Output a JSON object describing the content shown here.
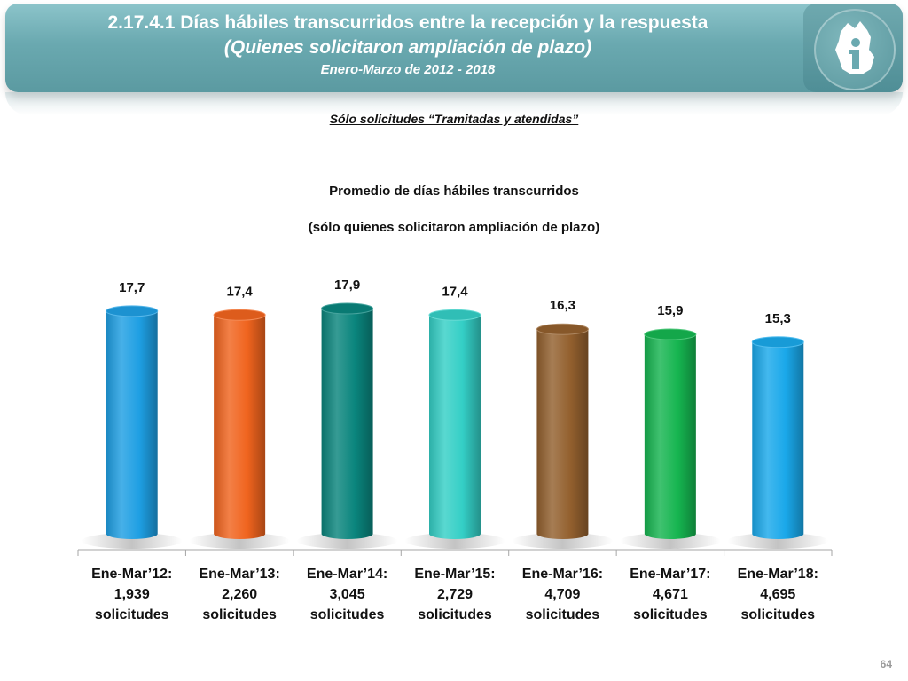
{
  "header": {
    "title": "2.17.4.1 Días hábiles transcurridos entre la recepción y la respuesta",
    "subtitle": "(Quienes solicitaron ampliación de plazo)",
    "period": "Enero-Marzo de 2012 - 2018"
  },
  "subheading": "Sólo solicitudes “Tramitadas y atendidas”",
  "page_number": "64",
  "chart_data": {
    "type": "bar",
    "title": "Promedio de días hábiles transcurridos",
    "subtitle": "(sólo quienes solicitaron ampliación de plazo)",
    "categories": [
      [
        "Ene-Mar’12:",
        "1,939",
        "solicitudes"
      ],
      [
        "Ene-Mar’13:",
        "2,260",
        "solicitudes"
      ],
      [
        "Ene-Mar’14:",
        "3,045",
        "solicitudes"
      ],
      [
        "Ene-Mar’15:",
        "2,729",
        "solicitudes"
      ],
      [
        "Ene-Mar’16:",
        "4,709",
        "solicitudes"
      ],
      [
        "Ene-Mar’17:",
        "4,671",
        "solicitudes"
      ],
      [
        "Ene-Mar’18:",
        "4,695",
        "solicitudes"
      ]
    ],
    "values": [
      17.7,
      17.4,
      17.9,
      17.4,
      16.3,
      15.9,
      15.3
    ],
    "value_labels": [
      "17,7",
      "17,4",
      "17,9",
      "17,4",
      "16,3",
      "15,9",
      "15,3"
    ],
    "colors": [
      "#1e9fe3",
      "#f0641e",
      "#0a857d",
      "#34cfc6",
      "#93602e",
      "#16b550",
      "#1aa8ea"
    ],
    "bar_style": "cylinder",
    "ylim": [
      0,
      17.9
    ],
    "grid": false,
    "legend": "none"
  }
}
